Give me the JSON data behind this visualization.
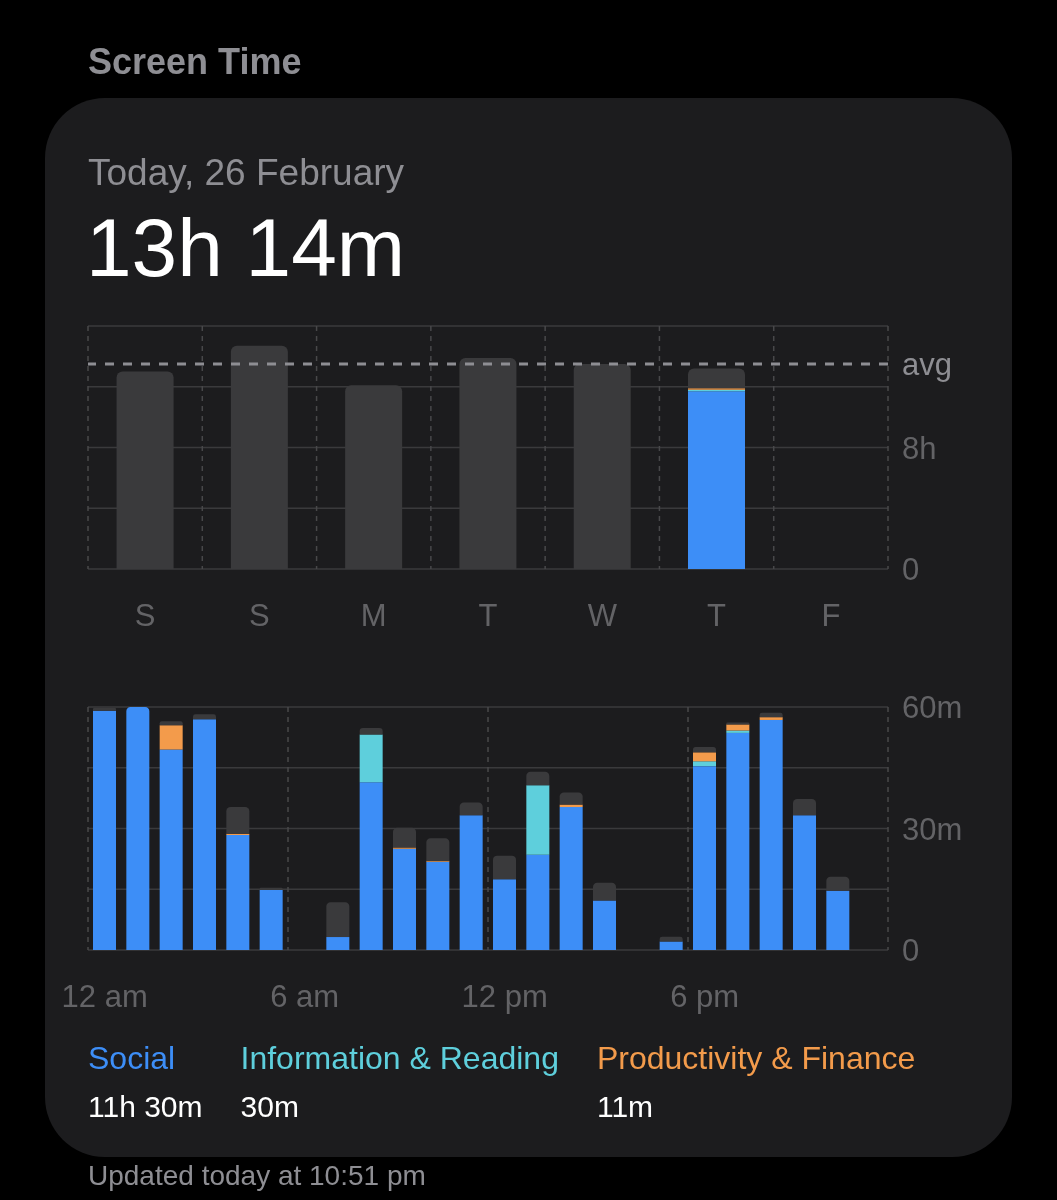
{
  "chart_data": [
    {
      "type": "bar",
      "title": "Screen Time",
      "subtitle": "Today, 26 February",
      "annotations": [
        "13h 14m"
      ],
      "categories": [
        "S",
        "S",
        "M",
        "T",
        "W",
        "T",
        "F"
      ],
      "stacked": true,
      "series": [
        {
          "color": "#3d8ef7",
          "values": [
            null,
            null,
            null,
            null,
            null,
            11.7,
            null
          ]
        },
        {
          "color": "#5ecfdc",
          "values": [
            null,
            null,
            null,
            null,
            null,
            0.1,
            null
          ]
        },
        {
          "color": "#f39b4b",
          "values": [
            null,
            null,
            null,
            null,
            null,
            0.1,
            null
          ]
        },
        {
          "color": "#3a3a3c",
          "values": [
            13.0,
            14.7,
            12.1,
            13.9,
            13.5,
            1.3,
            null
          ]
        }
      ],
      "ylim": [
        0,
        16
      ],
      "yticks": [
        0,
        {
          "value": 4,
          "label": null
        },
        {
          "value": 8,
          "label": "8h"
        },
        {
          "value": 12,
          "label": null
        },
        {
          "value": 16,
          "label": null
        }
      ],
      "grid": true,
      "ref_lines": [
        {
          "axis": "y",
          "value": 13.5,
          "label": "avg",
          "line_style": "dashed",
          "color": "#8e8e93"
        }
      ]
    },
    {
      "type": "bar",
      "categories": [
        "12 am",
        null,
        null,
        null,
        null,
        null,
        "6 am",
        null,
        null,
        null,
        null,
        null,
        "12 pm",
        null,
        null,
        null,
        null,
        null,
        "6 pm",
        null,
        null,
        null,
        null,
        null
      ],
      "stacked": true,
      "series": [
        {
          "name": "Social",
          "color": "#3d8ef7",
          "values": [
            59.1,
            60,
            49.5,
            57,
            28.4,
            14.8,
            null,
            3.2,
            41.4,
            25,
            21.8,
            33.3,
            17.5,
            23.5,
            35.3,
            12.2,
            null,
            2.1,
            45.4,
            53.6,
            56.8,
            33.3,
            14.6,
            null
          ]
        },
        {
          "name": "Information & Reading",
          "color": "#5ecfdc",
          "values": [
            null,
            null,
            null,
            null,
            null,
            null,
            null,
            null,
            11.8,
            null,
            null,
            null,
            null,
            17.2,
            null,
            null,
            null,
            null,
            1.2,
            0.6,
            null,
            null,
            null,
            null
          ]
        },
        {
          "name": "Productivity & Finance",
          "color": "#f39b4b",
          "values": [
            null,
            null,
            6,
            null,
            0.3,
            null,
            null,
            null,
            null,
            0.3,
            0.2,
            null,
            null,
            null,
            0.6,
            null,
            null,
            null,
            2.2,
            1.5,
            0.7,
            null,
            null,
            null
          ]
        },
        {
          "color": "#3a3a3c",
          "values": [
            0.7,
            null,
            1,
            1.2,
            6.6,
            0.6,
            null,
            8.6,
            1.6,
            4.9,
            5.6,
            3.1,
            5.8,
            3.3,
            3.0,
            4.4,
            null,
            1.2,
            1.3,
            0.5,
            1.1,
            4.0,
            3.5,
            null
          ]
        }
      ],
      "ylim": [
        0,
        60
      ],
      "yticks": [
        0,
        {
          "value": 15,
          "label": null
        },
        {
          "value": 30,
          "label": "30m"
        },
        {
          "value": 45,
          "label": null
        },
        {
          "value": 60,
          "label": "60m"
        }
      ],
      "grid": true,
      "annotations": [
        "11h 30m",
        "30m",
        "11m",
        "Updated today at 10:51 pm"
      ]
    }
  ]
}
